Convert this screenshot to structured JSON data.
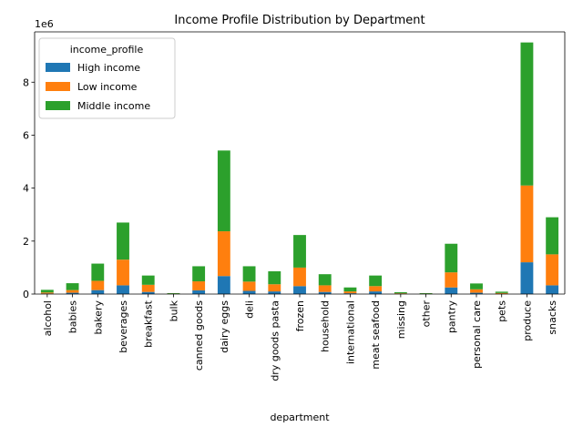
{
  "chart_data": {
    "type": "bar",
    "stacked": true,
    "title": "Income Profile Distribution by Department",
    "xlabel": "department",
    "ylabel": "",
    "y_offset_label": "1e6",
    "y_scale_factor": 1000000,
    "ylim": [
      0,
      9.9
    ],
    "yticks": [
      0,
      2,
      4,
      6,
      8
    ],
    "grid": false,
    "legend": {
      "title": "income_profile",
      "placement": "top-left"
    },
    "categories": [
      "alcohol",
      "babies",
      "bakery",
      "beverages",
      "breakfast",
      "bulk",
      "canned goods",
      "dairy eggs",
      "deli",
      "dry goods pasta",
      "frozen",
      "household",
      "international",
      "meat seafood",
      "missing",
      "other",
      "pantry",
      "personal care",
      "pets",
      "produce",
      "snacks"
    ],
    "series": [
      {
        "name": "High income",
        "color": "#1f77b4",
        "values": [
          0.02,
          0.05,
          0.15,
          0.33,
          0.08,
          0.005,
          0.14,
          0.68,
          0.12,
          0.1,
          0.3,
          0.08,
          0.03,
          0.1,
          0.01,
          0.005,
          0.25,
          0.05,
          0.01,
          1.2,
          0.33
        ]
      },
      {
        "name": "Low income",
        "color": "#ff7f0e",
        "values": [
          0.04,
          0.1,
          0.35,
          0.97,
          0.27,
          0.01,
          0.34,
          1.69,
          0.35,
          0.27,
          0.7,
          0.25,
          0.07,
          0.2,
          0.02,
          0.01,
          0.57,
          0.13,
          0.03,
          2.9,
          1.17
        ]
      },
      {
        "name": "Middle income",
        "color": "#2ca02c",
        "values": [
          0.1,
          0.26,
          0.65,
          1.4,
          0.35,
          0.02,
          0.57,
          3.05,
          0.58,
          0.49,
          1.23,
          0.42,
          0.15,
          0.4,
          0.04,
          0.02,
          1.08,
          0.22,
          0.05,
          5.4,
          1.4
        ]
      }
    ]
  }
}
